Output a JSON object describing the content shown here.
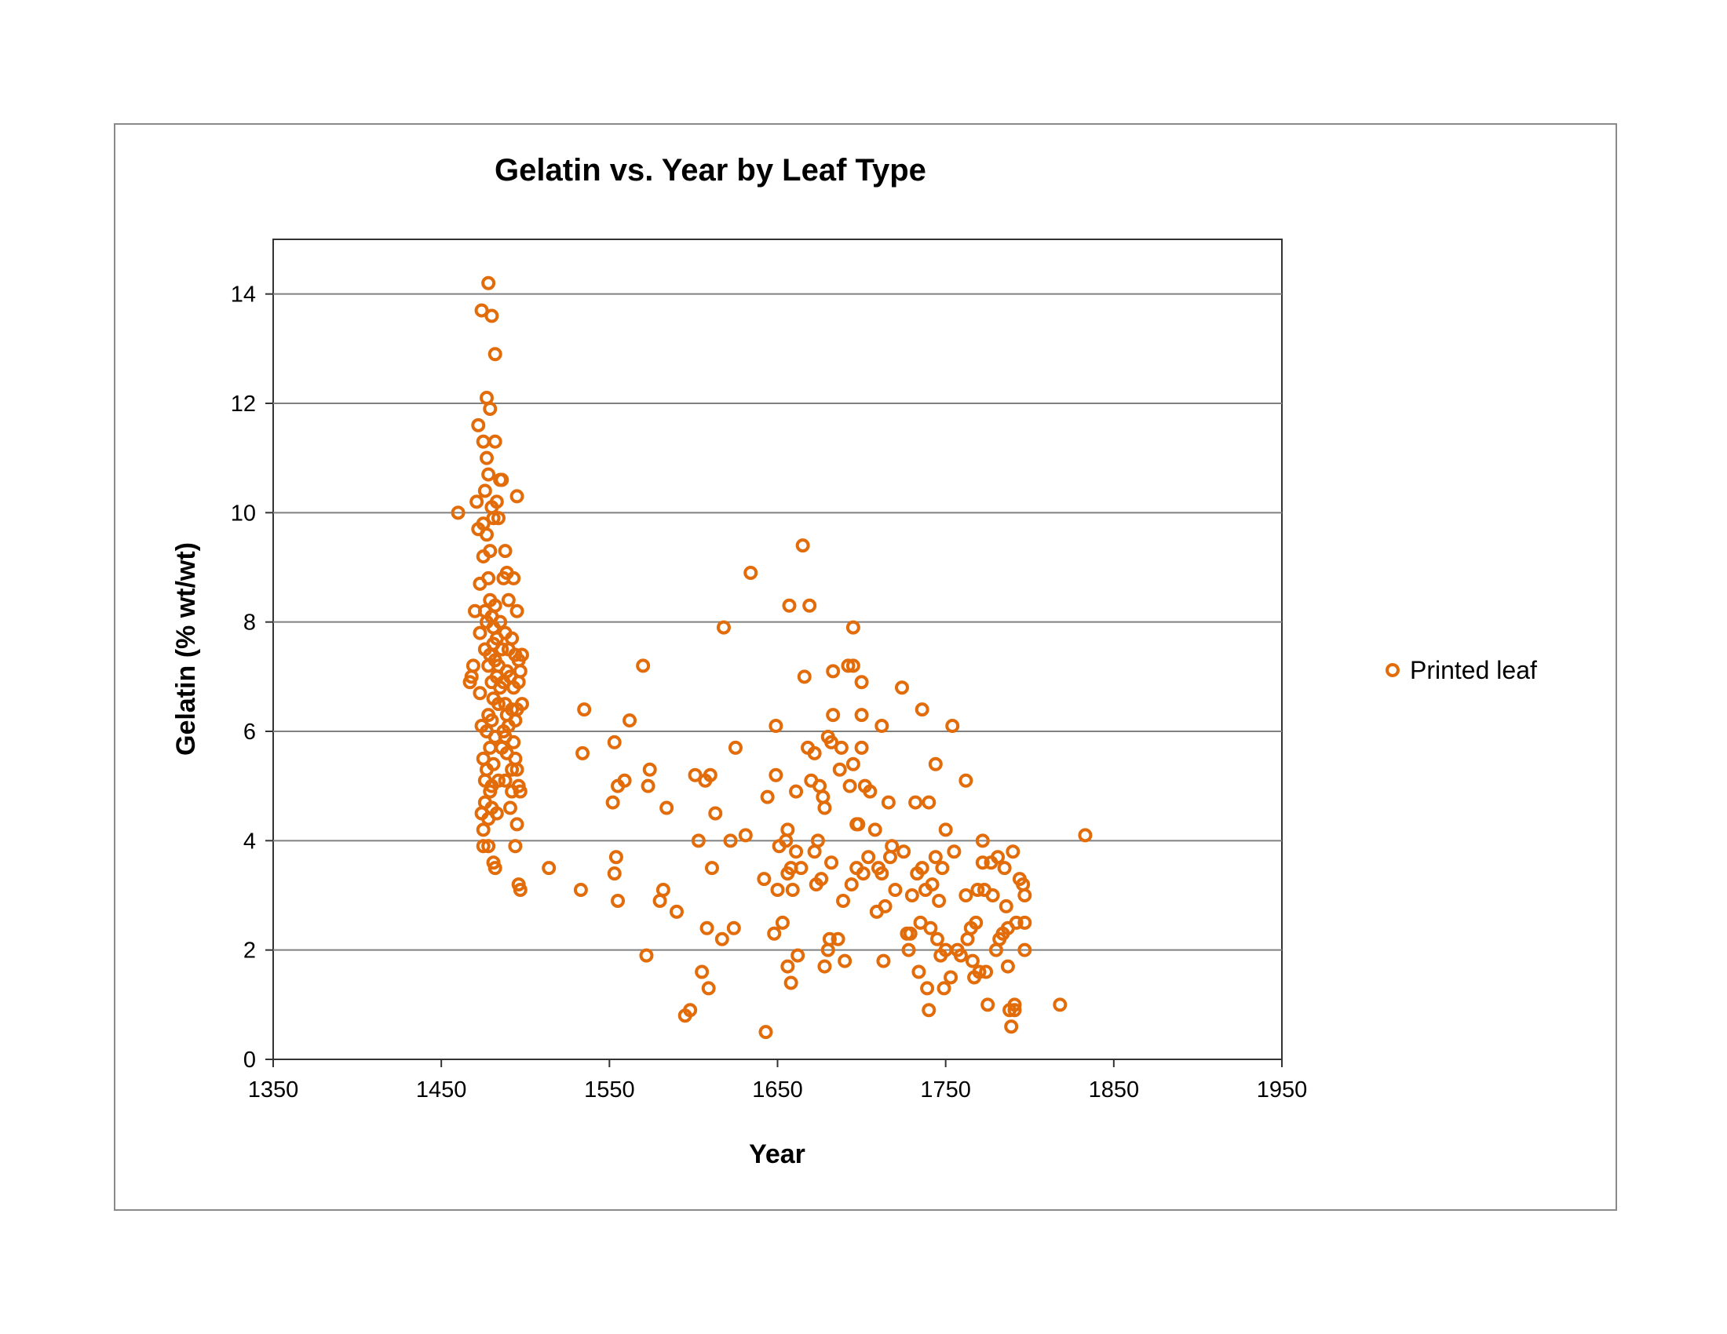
{
  "chart_data": {
    "type": "scatter",
    "title": "Gelatin vs. Year by Leaf Type",
    "xlabel": "Year",
    "ylabel": "Gelatin   (% wt/wt)",
    "xlim": [
      1350,
      1950
    ],
    "ylim": [
      0,
      15
    ],
    "xticks": [
      "1350",
      "1450",
      "1550",
      "1650",
      "1750",
      "1850",
      "1950"
    ],
    "yticks": [
      "0",
      "2",
      "4",
      "6",
      "8",
      "10",
      "12",
      "14"
    ],
    "grid": "horizontal",
    "legend_position": "right",
    "series": [
      {
        "name": "Printed leaf",
        "color": "#E36C0A",
        "marker": "open-circle",
        "points": [
          [
            1460,
            10.0
          ],
          [
            1467,
            6.9
          ],
          [
            1468,
            7.0
          ],
          [
            1469,
            7.2
          ],
          [
            1470,
            8.2
          ],
          [
            1471,
            10.2
          ],
          [
            1472,
            11.6
          ],
          [
            1472,
            9.7
          ],
          [
            1473,
            8.7
          ],
          [
            1473,
            7.8
          ],
          [
            1473,
            6.7
          ],
          [
            1474,
            13.7
          ],
          [
            1474,
            6.1
          ],
          [
            1474,
            4.5
          ],
          [
            1475,
            11.3
          ],
          [
            1475,
            9.8
          ],
          [
            1475,
            9.2
          ],
          [
            1475,
            5.5
          ],
          [
            1475,
            4.2
          ],
          [
            1475,
            3.9
          ],
          [
            1476,
            10.4
          ],
          [
            1476,
            8.2
          ],
          [
            1476,
            7.5
          ],
          [
            1476,
            5.1
          ],
          [
            1476,
            4.7
          ],
          [
            1477,
            12.1
          ],
          [
            1477,
            11.0
          ],
          [
            1477,
            9.6
          ],
          [
            1477,
            8.0
          ],
          [
            1477,
            6.0
          ],
          [
            1477,
            5.3
          ],
          [
            1478,
            14.2
          ],
          [
            1478,
            10.7
          ],
          [
            1478,
            8.8
          ],
          [
            1478,
            7.2
          ],
          [
            1478,
            6.3
          ],
          [
            1478,
            4.4
          ],
          [
            1478,
            3.9
          ],
          [
            1479,
            11.9
          ],
          [
            1479,
            9.3
          ],
          [
            1479,
            8.4
          ],
          [
            1479,
            7.4
          ],
          [
            1479,
            5.7
          ],
          [
            1479,
            4.9
          ],
          [
            1480,
            13.6
          ],
          [
            1480,
            10.1
          ],
          [
            1480,
            8.1
          ],
          [
            1480,
            6.9
          ],
          [
            1480,
            6.2
          ],
          [
            1480,
            5.0
          ],
          [
            1480,
            4.6
          ],
          [
            1481,
            9.9
          ],
          [
            1481,
            7.9
          ],
          [
            1481,
            7.6
          ],
          [
            1481,
            6.6
          ],
          [
            1481,
            5.4
          ],
          [
            1481,
            3.6
          ],
          [
            1482,
            12.9
          ],
          [
            1482,
            11.3
          ],
          [
            1482,
            8.3
          ],
          [
            1482,
            7.3
          ],
          [
            1482,
            5.9
          ],
          [
            1482,
            3.5
          ],
          [
            1483,
            10.2
          ],
          [
            1483,
            7.7
          ],
          [
            1483,
            7.0
          ],
          [
            1483,
            4.5
          ],
          [
            1484,
            9.9
          ],
          [
            1484,
            7.2
          ],
          [
            1484,
            6.5
          ],
          [
            1484,
            5.1
          ],
          [
            1485,
            10.6
          ],
          [
            1485,
            8.0
          ],
          [
            1485,
            6.8
          ],
          [
            1486,
            10.6
          ],
          [
            1486,
            7.5
          ],
          [
            1486,
            5.7
          ],
          [
            1487,
            8.8
          ],
          [
            1487,
            6.9
          ],
          [
            1487,
            6.0
          ],
          [
            1488,
            9.3
          ],
          [
            1488,
            7.8
          ],
          [
            1488,
            6.5
          ],
          [
            1488,
            5.9
          ],
          [
            1488,
            5.1
          ],
          [
            1489,
            8.9
          ],
          [
            1489,
            7.1
          ],
          [
            1489,
            6.3
          ],
          [
            1489,
            5.6
          ],
          [
            1490,
            8.4
          ],
          [
            1490,
            7.5
          ],
          [
            1490,
            6.1
          ],
          [
            1491,
            7.0
          ],
          [
            1491,
            4.6
          ],
          [
            1492,
            7.7
          ],
          [
            1492,
            6.4
          ],
          [
            1492,
            5.3
          ],
          [
            1492,
            4.9
          ],
          [
            1493,
            8.8
          ],
          [
            1493,
            6.8
          ],
          [
            1493,
            5.8
          ],
          [
            1494,
            7.4
          ],
          [
            1494,
            6.2
          ],
          [
            1494,
            5.5
          ],
          [
            1494,
            3.9
          ],
          [
            1495,
            10.3
          ],
          [
            1495,
            8.2
          ],
          [
            1495,
            6.4
          ],
          [
            1495,
            5.3
          ],
          [
            1495,
            4.3
          ],
          [
            1496,
            7.3
          ],
          [
            1496,
            6.9
          ],
          [
            1496,
            5.0
          ],
          [
            1496,
            3.2
          ],
          [
            1497,
            7.1
          ],
          [
            1497,
            4.9
          ],
          [
            1497,
            3.1
          ],
          [
            1498,
            6.5
          ],
          [
            1498,
            7.4
          ],
          [
            1514,
            3.5
          ],
          [
            1533,
            3.1
          ],
          [
            1534,
            5.6
          ],
          [
            1535,
            6.4
          ],
          [
            1552,
            4.7
          ],
          [
            1553,
            5.8
          ],
          [
            1553,
            3.4
          ],
          [
            1554,
            3.7
          ],
          [
            1555,
            5.0
          ],
          [
            1555,
            2.9
          ],
          [
            1559,
            5.1
          ],
          [
            1562,
            6.2
          ],
          [
            1570,
            7.2
          ],
          [
            1572,
            1.9
          ],
          [
            1573,
            5.0
          ],
          [
            1574,
            5.3
          ],
          [
            1580,
            2.9
          ],
          [
            1582,
            3.1
          ],
          [
            1584,
            4.6
          ],
          [
            1590,
            2.7
          ],
          [
            1595,
            0.8
          ],
          [
            1598,
            0.9
          ],
          [
            1601,
            5.2
          ],
          [
            1603,
            4.0
          ],
          [
            1605,
            1.6
          ],
          [
            1607,
            5.1
          ],
          [
            1608,
            2.4
          ],
          [
            1609,
            1.3
          ],
          [
            1610,
            5.2
          ],
          [
            1611,
            3.5
          ],
          [
            1613,
            4.5
          ],
          [
            1617,
            2.2
          ],
          [
            1618,
            7.9
          ],
          [
            1622,
            4.0
          ],
          [
            1624,
            2.4
          ],
          [
            1625,
            5.7
          ],
          [
            1631,
            4.1
          ],
          [
            1634,
            8.9
          ],
          [
            1642,
            3.3
          ],
          [
            1643,
            0.5
          ],
          [
            1644,
            4.8
          ],
          [
            1648,
            2.3
          ],
          [
            1649,
            6.1
          ],
          [
            1649,
            5.2
          ],
          [
            1650,
            3.1
          ],
          [
            1651,
            3.9
          ],
          [
            1653,
            2.5
          ],
          [
            1655,
            4.0
          ],
          [
            1656,
            4.2
          ],
          [
            1656,
            3.4
          ],
          [
            1656,
            1.7
          ],
          [
            1657,
            8.3
          ],
          [
            1658,
            3.5
          ],
          [
            1658,
            1.4
          ],
          [
            1659,
            3.1
          ],
          [
            1661,
            4.9
          ],
          [
            1661,
            3.8
          ],
          [
            1662,
            1.9
          ],
          [
            1664,
            3.5
          ],
          [
            1665,
            9.4
          ],
          [
            1666,
            7.0
          ],
          [
            1668,
            5.7
          ],
          [
            1669,
            8.3
          ],
          [
            1670,
            5.1
          ],
          [
            1672,
            5.6
          ],
          [
            1672,
            3.8
          ],
          [
            1673,
            3.2
          ],
          [
            1674,
            4.0
          ],
          [
            1675,
            5.0
          ],
          [
            1676,
            3.3
          ],
          [
            1677,
            4.8
          ],
          [
            1678,
            4.6
          ],
          [
            1678,
            1.7
          ],
          [
            1680,
            2.0
          ],
          [
            1680,
            5.9
          ],
          [
            1681,
            2.2
          ],
          [
            1682,
            3.6
          ],
          [
            1682,
            5.8
          ],
          [
            1683,
            7.1
          ],
          [
            1683,
            6.3
          ],
          [
            1686,
            2.2
          ],
          [
            1687,
            5.3
          ],
          [
            1688,
            5.7
          ],
          [
            1689,
            2.9
          ],
          [
            1690,
            1.8
          ],
          [
            1692,
            7.2
          ],
          [
            1693,
            5.0
          ],
          [
            1694,
            3.2
          ],
          [
            1695,
            7.9
          ],
          [
            1695,
            7.2
          ],
          [
            1695,
            5.4
          ],
          [
            1697,
            3.5
          ],
          [
            1697,
            4.3
          ],
          [
            1698,
            4.3
          ],
          [
            1700,
            6.3
          ],
          [
            1700,
            6.9
          ],
          [
            1700,
            5.7
          ],
          [
            1701,
            3.4
          ],
          [
            1702,
            5.0
          ],
          [
            1704,
            3.7
          ],
          [
            1705,
            4.9
          ],
          [
            1708,
            4.2
          ],
          [
            1709,
            2.7
          ],
          [
            1710,
            3.5
          ],
          [
            1712,
            6.1
          ],
          [
            1712,
            3.4
          ],
          [
            1713,
            1.8
          ],
          [
            1714,
            2.8
          ],
          [
            1716,
            4.7
          ],
          [
            1717,
            3.7
          ],
          [
            1718,
            3.9
          ],
          [
            1720,
            3.1
          ],
          [
            1724,
            6.8
          ],
          [
            1725,
            3.8
          ],
          [
            1727,
            2.3
          ],
          [
            1728,
            2.0
          ],
          [
            1729,
            2.3
          ],
          [
            1730,
            3.0
          ],
          [
            1732,
            4.7
          ],
          [
            1733,
            3.4
          ],
          [
            1734,
            1.6
          ],
          [
            1735,
            2.5
          ],
          [
            1736,
            6.4
          ],
          [
            1736,
            3.5
          ],
          [
            1738,
            3.1
          ],
          [
            1739,
            1.3
          ],
          [
            1740,
            0.9
          ],
          [
            1740,
            4.7
          ],
          [
            1741,
            2.4
          ],
          [
            1742,
            3.2
          ],
          [
            1744,
            5.4
          ],
          [
            1744,
            3.7
          ],
          [
            1745,
            2.2
          ],
          [
            1746,
            2.9
          ],
          [
            1747,
            1.9
          ],
          [
            1748,
            3.5
          ],
          [
            1749,
            1.3
          ],
          [
            1750,
            4.2
          ],
          [
            1750,
            2.0
          ],
          [
            1753,
            1.5
          ],
          [
            1754,
            6.1
          ],
          [
            1755,
            3.8
          ],
          [
            1757,
            2.0
          ],
          [
            1759,
            1.9
          ],
          [
            1762,
            5.1
          ],
          [
            1762,
            3.0
          ],
          [
            1763,
            2.2
          ],
          [
            1765,
            2.4
          ],
          [
            1766,
            1.8
          ],
          [
            1767,
            1.5
          ],
          [
            1768,
            2.5
          ],
          [
            1769,
            3.1
          ],
          [
            1770,
            1.6
          ],
          [
            1772,
            4.0
          ],
          [
            1772,
            3.6
          ],
          [
            1773,
            3.1
          ],
          [
            1774,
            1.6
          ],
          [
            1775,
            1.0
          ],
          [
            1777,
            3.6
          ],
          [
            1778,
            3.0
          ],
          [
            1780,
            2.0
          ],
          [
            1781,
            3.7
          ],
          [
            1782,
            2.2
          ],
          [
            1784,
            2.3
          ],
          [
            1785,
            3.5
          ],
          [
            1786,
            2.8
          ],
          [
            1787,
            2.4
          ],
          [
            1787,
            1.7
          ],
          [
            1788,
            0.9
          ],
          [
            1789,
            0.6
          ],
          [
            1790,
            3.8
          ],
          [
            1791,
            1.0
          ],
          [
            1791,
            0.9
          ],
          [
            1792,
            2.5
          ],
          [
            1794,
            3.3
          ],
          [
            1796,
            3.2
          ],
          [
            1797,
            3.0
          ],
          [
            1797,
            2.5
          ],
          [
            1797,
            2.0
          ],
          [
            1818,
            1.0
          ],
          [
            1833,
            4.1
          ]
        ]
      }
    ]
  }
}
